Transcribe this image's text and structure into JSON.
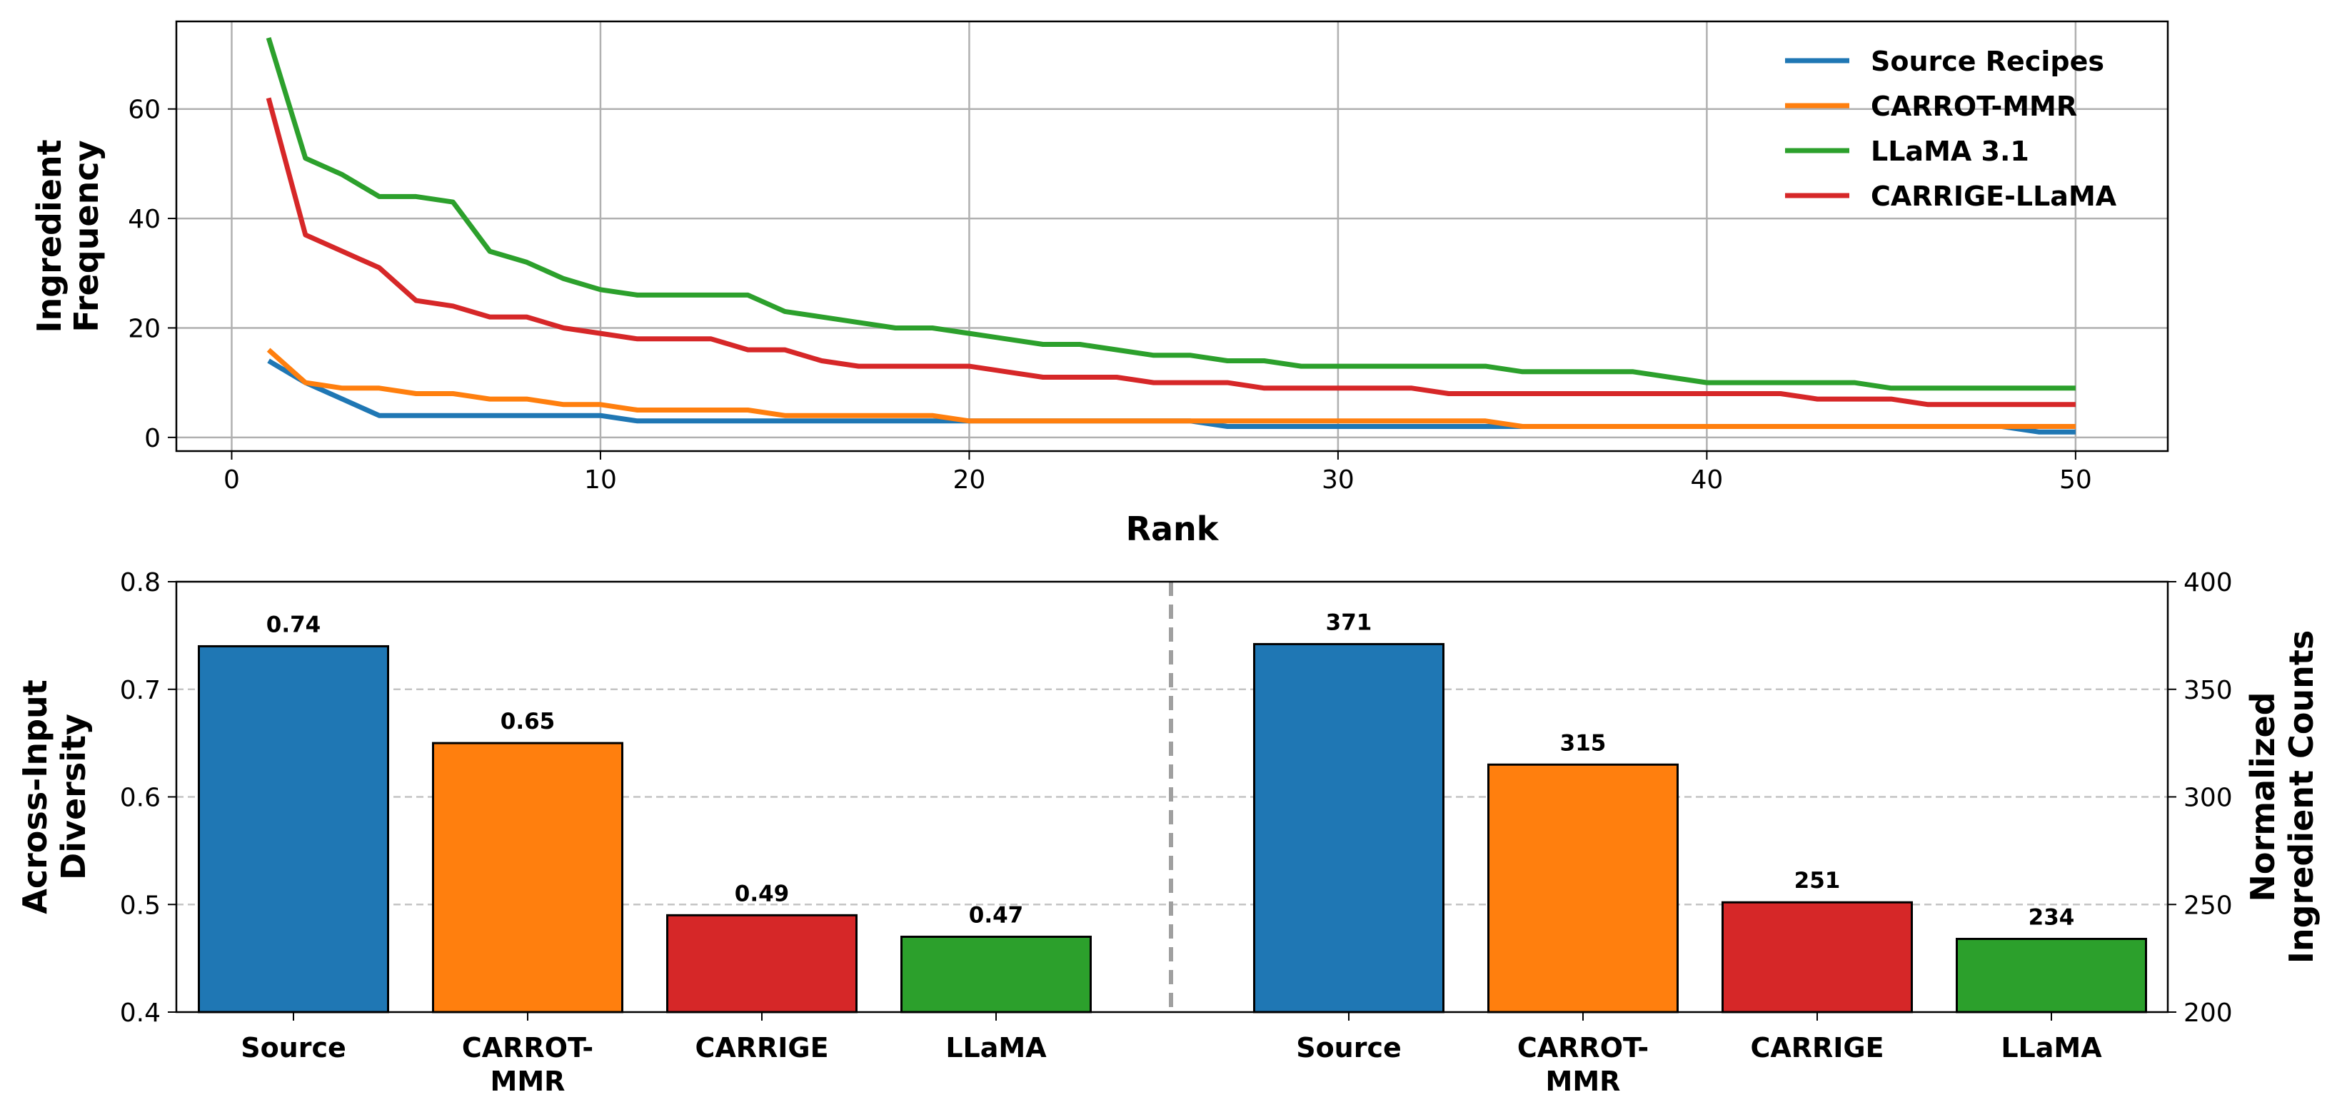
{
  "chart_data": [
    {
      "type": "line",
      "xlabel": "Rank",
      "ylabel": [
        "Ingredient",
        "Frequency"
      ],
      "xlim": [
        -1.5,
        52.5
      ],
      "ylim": [
        -2.5,
        76
      ],
      "xticks": [
        0,
        10,
        20,
        30,
        40,
        50
      ],
      "yticks": [
        0,
        20,
        40,
        60
      ],
      "grid": true,
      "legend_position": "top-right",
      "x": [
        1,
        2,
        3,
        4,
        5,
        6,
        7,
        8,
        9,
        10,
        11,
        12,
        13,
        14,
        15,
        16,
        17,
        18,
        19,
        20,
        21,
        22,
        23,
        24,
        25,
        26,
        27,
        28,
        29,
        30,
        31,
        32,
        33,
        34,
        35,
        36,
        37,
        38,
        39,
        40,
        41,
        42,
        43,
        44,
        45,
        46,
        47,
        48,
        49,
        50
      ],
      "series": [
        {
          "name": "Source Recipes",
          "color": "#1f77b4",
          "values": [
            14,
            10,
            7,
            4,
            4,
            4,
            4,
            4,
            4,
            4,
            3,
            3,
            3,
            3,
            3,
            3,
            3,
            3,
            3,
            3,
            3,
            3,
            3,
            3,
            3,
            3,
            2,
            2,
            2,
            2,
            2,
            2,
            2,
            2,
            2,
            2,
            2,
            2,
            2,
            2,
            2,
            2,
            2,
            2,
            2,
            2,
            2,
            2,
            1,
            1
          ]
        },
        {
          "name": "CARROT-MMR",
          "color": "#ff7f0e",
          "values": [
            16,
            10,
            9,
            9,
            8,
            8,
            7,
            7,
            6,
            6,
            5,
            5,
            5,
            5,
            4,
            4,
            4,
            4,
            4,
            3,
            3,
            3,
            3,
            3,
            3,
            3,
            3,
            3,
            3,
            3,
            3,
            3,
            3,
            3,
            2,
            2,
            2,
            2,
            2,
            2,
            2,
            2,
            2,
            2,
            2,
            2,
            2,
            2,
            2,
            2
          ]
        },
        {
          "name": "LLaMA 3.1",
          "color": "#2ca02c",
          "values": [
            73,
            51,
            48,
            44,
            44,
            43,
            34,
            32,
            29,
            27,
            26,
            26,
            26,
            26,
            23,
            22,
            21,
            20,
            20,
            19,
            18,
            17,
            17,
            16,
            15,
            15,
            14,
            14,
            13,
            13,
            13,
            13,
            13,
            13,
            12,
            12,
            12,
            12,
            11,
            10,
            10,
            10,
            10,
            10,
            9,
            9,
            9,
            9,
            9,
            9
          ]
        },
        {
          "name": "CARRIGE-LLaMA",
          "color": "#d62728",
          "values": [
            62,
            37,
            34,
            31,
            25,
            24,
            22,
            22,
            20,
            19,
            18,
            18,
            18,
            16,
            16,
            14,
            13,
            13,
            13,
            13,
            12,
            11,
            11,
            11,
            10,
            10,
            10,
            9,
            9,
            9,
            9,
            9,
            8,
            8,
            8,
            8,
            8,
            8,
            8,
            8,
            8,
            8,
            7,
            7,
            7,
            6,
            6,
            6,
            6,
            6
          ]
        }
      ]
    },
    {
      "type": "bar",
      "ylabel": [
        "Across-Input",
        "Diversity"
      ],
      "ylim": [
        0.4,
        0.8
      ],
      "yticks": [
        "0.4",
        "0.5",
        "0.6",
        "0.7",
        "0.8"
      ],
      "grid": "horizontal-dashed",
      "categories": [
        [
          "Source"
        ],
        [
          "CARROT-",
          "MMR"
        ],
        [
          "CARRIGE"
        ],
        [
          "LLaMA"
        ]
      ],
      "values": [
        0.74,
        0.65,
        0.49,
        0.47
      ],
      "value_labels": [
        "0.74",
        "0.65",
        "0.49",
        "0.47"
      ],
      "colors": [
        "#1f77b4",
        "#ff7f0e",
        "#d62728",
        "#2ca02c"
      ]
    },
    {
      "type": "bar",
      "ylabel": [
        "Normalized",
        "Ingredient Counts"
      ],
      "yaxis_side": "right",
      "ylim": [
        200,
        400
      ],
      "yticks": [
        "200",
        "250",
        "300",
        "350",
        "400"
      ],
      "grid": "horizontal-dashed",
      "categories": [
        [
          "Source"
        ],
        [
          "CARROT-",
          "MMR"
        ],
        [
          "CARRIGE"
        ],
        [
          "LLaMA"
        ]
      ],
      "values": [
        371,
        315,
        251,
        234
      ],
      "value_labels": [
        "371",
        "315",
        "251",
        "234"
      ],
      "colors": [
        "#1f77b4",
        "#ff7f0e",
        "#d62728",
        "#2ca02c"
      ]
    }
  ]
}
